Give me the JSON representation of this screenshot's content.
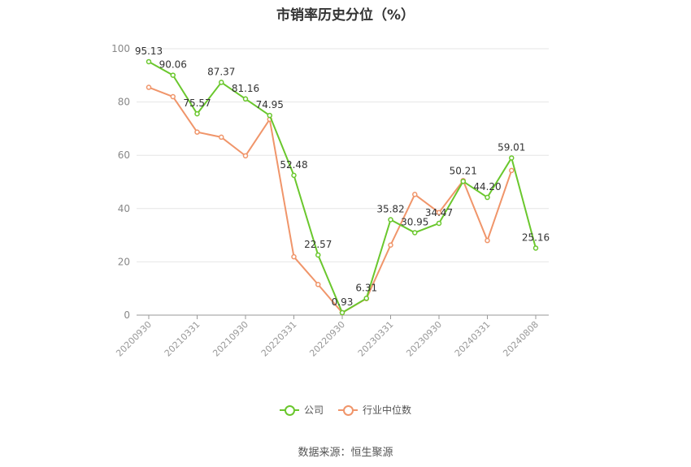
{
  "chart_data": {
    "type": "line",
    "title": "市销率历史分位（%）",
    "x": [
      "20200930",
      "20201231",
      "20210331",
      "20210630",
      "20210930",
      "20211231",
      "20220331",
      "20220630",
      "20220930",
      "20221231",
      "20230331",
      "20230630",
      "20230930",
      "20231231",
      "20240331",
      "20240630",
      "20240808"
    ],
    "x_tick_labels": [
      "20200930",
      "20210331",
      "20210930",
      "20220331",
      "20220930",
      "20230331",
      "20230930",
      "20240331",
      "20240808"
    ],
    "ylim": [
      0,
      100
    ],
    "y_ticks": [
      0,
      20,
      40,
      60,
      80,
      100
    ],
    "grid": true,
    "legend": "bottom-center",
    "series": [
      {
        "name": "公司",
        "color": "#6ac72d",
        "values": [
          95.13,
          90.06,
          75.57,
          87.37,
          81.16,
          74.95,
          52.48,
          22.57,
          0.93,
          6.31,
          35.82,
          30.95,
          34.47,
          50.21,
          44.2,
          59.01,
          25.16
        ],
        "labels": [
          "95.13",
          "90.06",
          "75.57",
          "87.37",
          "81.16",
          "74.95",
          "52.48",
          "22.57",
          "0.93",
          "6.31",
          "35.82",
          "30.95",
          "34.47",
          "50.21",
          "44.20",
          "59.01",
          "25.16"
        ]
      },
      {
        "name": "行业中位数",
        "color": "#f0956a",
        "values": [
          85.5,
          82.0,
          68.7,
          66.8,
          59.8,
          73.5,
          21.9,
          11.5,
          0.9,
          6.2,
          26.3,
          45.3,
          38.5,
          50.5,
          28.0,
          54.3,
          null
        ],
        "labels": []
      }
    ]
  },
  "source": "数据来源：恒生聚源"
}
